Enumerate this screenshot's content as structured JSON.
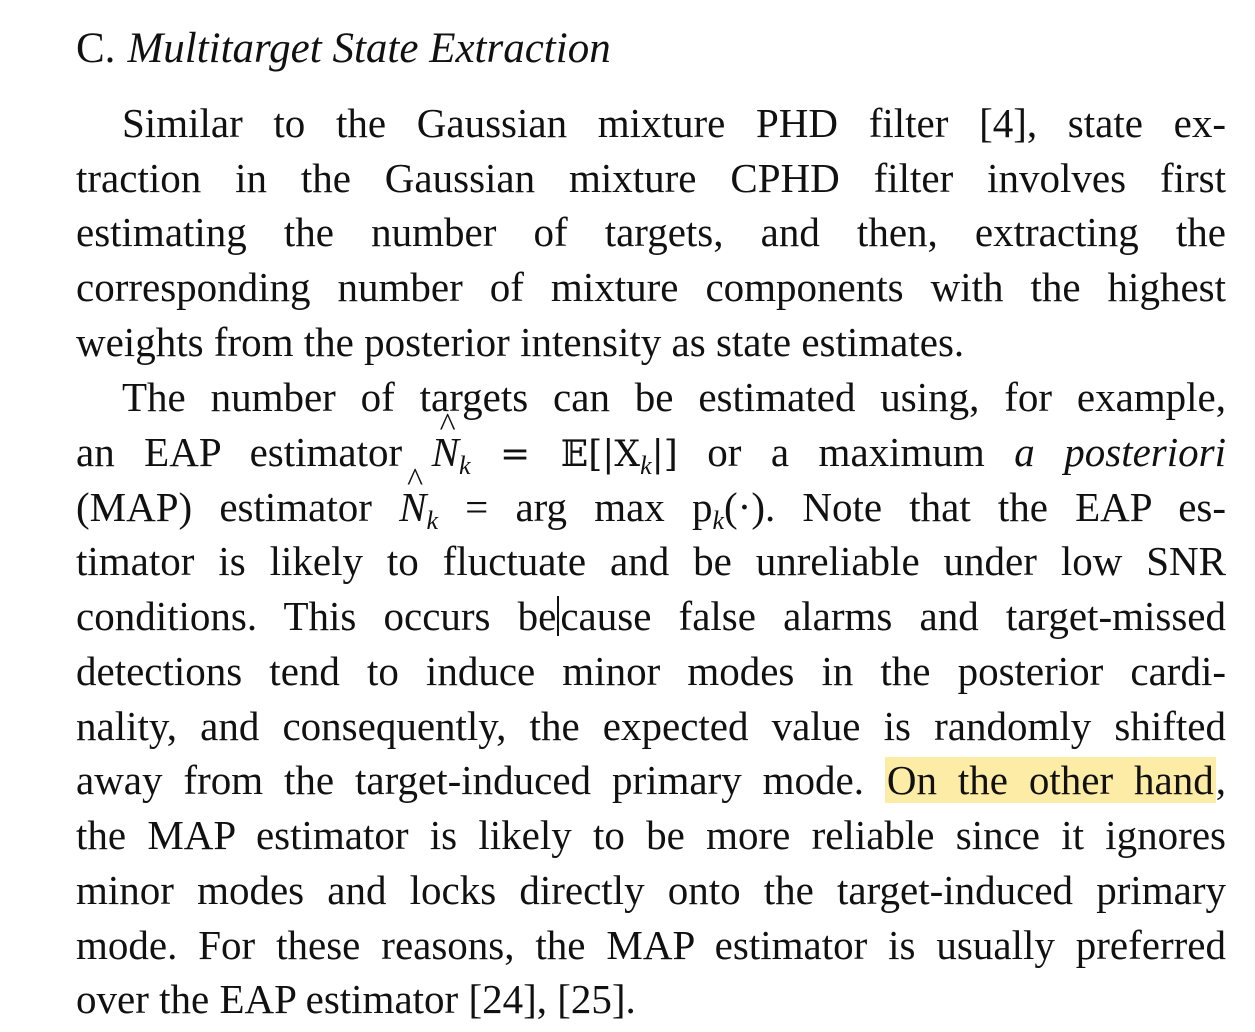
{
  "section": {
    "number": "C.",
    "title": "Multitarget State Extraction"
  },
  "paragraph1": {
    "line1": "Similar to the Gaussian mixture PHD filter [4], state ex-",
    "line2": "traction in the Gaussian mixture CPHD filter involves first",
    "line3": "estimating the number of targets, and then, extracting the",
    "line4": "corresponding number of mixture components with the highest",
    "line5": "weights from the posterior intensity as state estimates."
  },
  "paragraph2": {
    "line1": "The number of targets can be estimated using, for example,",
    "line2_a": "an EAP estimator",
    "line2_eq": "= 𝔼[|X",
    "line2_eq_end": "|]",
    "line2_b": "or a maximum",
    "line2_c": "a posteriori",
    "line3_a": "(MAP) estimator",
    "line3_eq": "= arg max p",
    "line3_eq_end": "(·). Note that the EAP es-",
    "line4": "timator is likely to fluctuate and be unreliable under low SNR",
    "line5_a": "conditions. This occurs be",
    "line5_b": "cause false alarms and target-missed",
    "line6": "detections tend to induce minor modes in the posterior cardi-",
    "line7": "nality, and consequently, the expected value is randomly shifted",
    "line8_a": "away from the target-induced primary mode.",
    "line8_highlight": "On the other hand",
    "line8_b": ",",
    "line9": "the MAP estimator is likely to be more reliable since it ignores",
    "line10": "minor modes and locks directly onto the target-induced primary",
    "line11": "mode. For these reasons, the MAP estimator is usually preferred",
    "line12": "over the EAP estimator [24], [25]."
  },
  "math": {
    "N": "N",
    "hat": "^",
    "k": "k"
  },
  "colors": {
    "highlight": "#fdeca6",
    "text": "#111111"
  }
}
